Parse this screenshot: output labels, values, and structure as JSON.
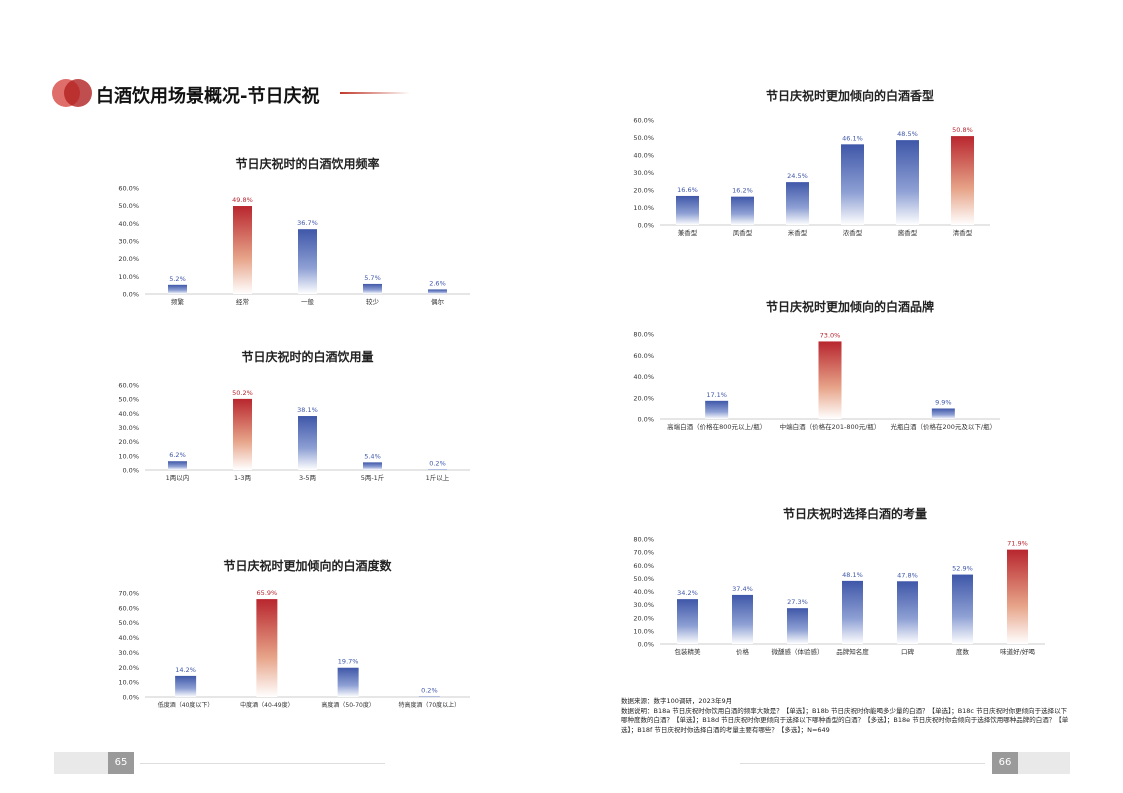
{
  "header": {
    "title": "白酒饮用场景概况-节日庆祝"
  },
  "colors": {
    "red": "#b8262e",
    "blue": "#3f57a8",
    "accent": "#c0392b"
  },
  "footer": {
    "left_page": "65",
    "right_page": "66"
  },
  "source": {
    "line1": "数据来源：数字100调研，2023年9月",
    "line2": "数据说明：B18a 节日庆祝时你饮用白酒的频率大致是？【单选】；B18b 节日庆祝时你能喝多少量的白酒？【单选】；B18c 节日庆祝时你更倾向于选择以下哪种度数的白酒？【单选】；B18d 节日庆祝时你更倾向于选择以下哪种香型的白酒？【多选】；B18e 节日庆祝时你会倾向于选择饮用哪种品牌的白酒？【单选】；B18f 节日庆祝时你选择白酒的考量主要有哪些？【多选】；N=649"
  },
  "chart_data": [
    {
      "type": "bar",
      "title": "节日庆祝时的白酒饮用频率",
      "categories": [
        "频繁",
        "经常",
        "一般",
        "较少",
        "偶尔"
      ],
      "values": [
        5.2,
        49.8,
        36.7,
        5.7,
        2.6
      ],
      "ylim": [
        0,
        60
      ],
      "yticks": [
        "60.0%",
        "50.0%",
        "40.0%",
        "30.0%",
        "20.0%",
        "10.0%",
        "0.0%"
      ],
      "labels": [
        "5.2%",
        "49.8%",
        "36.7%",
        "5.7%",
        "2.6%"
      ],
      "highlight": 1
    },
    {
      "type": "bar",
      "title": "节日庆祝时的白酒饮用量",
      "categories": [
        "1两以内",
        "1-3两",
        "3-5两",
        "5两-1斤",
        "1斤以上"
      ],
      "values": [
        6.2,
        50.2,
        38.1,
        5.4,
        0.2
      ],
      "ylim": [
        0,
        60
      ],
      "yticks": [
        "60.0%",
        "50.0%",
        "40.0%",
        "30.0%",
        "20.0%",
        "10.0%",
        "0.0%"
      ],
      "labels": [
        "6.2%",
        "50.2%",
        "38.1%",
        "5.4%",
        "0.2%"
      ],
      "highlight": 1
    },
    {
      "type": "bar",
      "title": "节日庆祝时更加倾向的白酒度数",
      "categories": [
        "低度酒（40度以下）",
        "中度酒（40-49度）",
        "高度酒（50-70度）",
        "特高度酒（70度以上）"
      ],
      "values": [
        14.2,
        65.9,
        19.7,
        0.2
      ],
      "ylim": [
        0,
        70
      ],
      "yticks": [
        "70.0%",
        "60.0%",
        "50.0%",
        "40.0%",
        "30.0%",
        "20.0%",
        "10.0%",
        "0.0%"
      ],
      "labels": [
        "14.2%",
        "65.9%",
        "19.7%",
        "0.2%"
      ],
      "highlight": 1
    },
    {
      "type": "bar",
      "title": "节日庆祝时更加倾向的白酒香型",
      "categories": [
        "兼香型",
        "凤香型",
        "米香型",
        "浓香型",
        "酱香型",
        "清香型"
      ],
      "values": [
        16.6,
        16.2,
        24.5,
        46.1,
        48.5,
        50.8
      ],
      "ylim": [
        0,
        60
      ],
      "yticks": [
        "60.0%",
        "50.0%",
        "40.0%",
        "30.0%",
        "20.0%",
        "10.0%",
        "0.0%"
      ],
      "labels": [
        "16.6%",
        "16.2%",
        "24.5%",
        "46.1%",
        "48.5%",
        "50.8%"
      ],
      "highlight": 5
    },
    {
      "type": "bar",
      "title": "节日庆祝时更加倾向的白酒品牌",
      "categories": [
        "高端白酒（价格在800元以上/瓶）",
        "中端白酒（价格在201-800元/瓶）",
        "光瓶白酒（价格在200元及以下/瓶）"
      ],
      "values": [
        17.1,
        73.0,
        9.9
      ],
      "ylim": [
        0,
        80
      ],
      "yticks": [
        "80.0%",
        "60.0%",
        "40.0%",
        "20.0%",
        "0.0%"
      ],
      "labels": [
        "17.1%",
        "73.0%",
        "9.9%"
      ],
      "highlight": 1
    },
    {
      "type": "bar",
      "title": "节日庆祝时选择白酒的考量",
      "categories": [
        "包装精美",
        "价格",
        "微醺感（体验感）",
        "品牌知名度",
        "口碑",
        "度数",
        "味道好/好喝"
      ],
      "values": [
        34.2,
        37.4,
        27.3,
        48.1,
        47.8,
        52.9,
        71.9
      ],
      "ylim": [
        0,
        80
      ],
      "yticks": [
        "80.0%",
        "70.0%",
        "60.0%",
        "50.0%",
        "40.0%",
        "30.0%",
        "20.0%",
        "10.0%",
        "0.0%"
      ],
      "labels": [
        "34.2%",
        "37.4%",
        "27.3%",
        "48.1%",
        "47.8%",
        "52.9%",
        "71.9%"
      ],
      "highlight": 6
    }
  ]
}
